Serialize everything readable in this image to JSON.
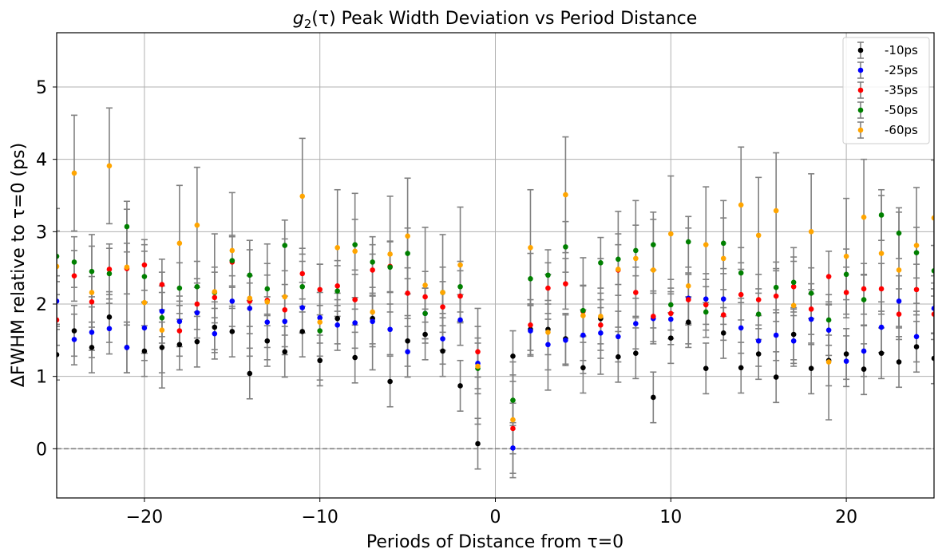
{
  "chart_data": {
    "type": "scatter",
    "title": "g₂(τ) Peak Width Deviation vs Period Distance",
    "title_math": "g",
    "title_sub": "2",
    "title_arg": "(τ)",
    "title_rest": " Peak Width Deviation vs Period Distance",
    "xlabel": "Periods of Distance from τ=0",
    "ylabel": "ΔFWHM relative to τ=0 (ps)",
    "xlim": [
      -25,
      25
    ],
    "ylim": [
      -0.68,
      5.75
    ],
    "xticks": [
      -20,
      -10,
      0,
      10,
      20
    ],
    "xtick_labels": [
      "−20",
      "−10",
      "0",
      "10",
      "20"
    ],
    "yticks": [
      0,
      1,
      2,
      3,
      4,
      5
    ],
    "ytick_labels": [
      "0",
      "1",
      "2",
      "3",
      "4",
      "5"
    ],
    "grid": true,
    "reference_line": {
      "y": 0,
      "style": "dashed",
      "color": "#808080"
    },
    "errorbar_color": "#808080",
    "legend_position": "top-right",
    "series": [
      {
        "name": "-10ps",
        "color": "#000000",
        "x": [
          -25,
          -24,
          -23,
          -22,
          -21,
          -20,
          -19,
          -18,
          -17,
          -16,
          -15,
          -14,
          -13,
          -12,
          -11,
          -10,
          -9,
          -8,
          -7,
          -6,
          -5,
          -4,
          -3,
          -2,
          -1,
          1,
          2,
          3,
          4,
          5,
          6,
          7,
          8,
          9,
          10,
          11,
          12,
          13,
          14,
          15,
          16,
          17,
          18,
          19,
          20,
          21,
          22,
          23,
          24,
          25
        ],
        "y": [
          1.3,
          1.63,
          1.4,
          1.82,
          1.4,
          1.35,
          1.4,
          1.44,
          1.48,
          1.68,
          1.62,
          1.04,
          1.49,
          1.34,
          1.62,
          1.22,
          1.8,
          1.26,
          1.8,
          0.93,
          1.49,
          1.58,
          1.35,
          0.87,
          0.07,
          1.28,
          1.65,
          1.65,
          1.52,
          1.12,
          1.8,
          1.27,
          1.32,
          0.71,
          1.53,
          1.75,
          1.11,
          1.6,
          1.12,
          1.31,
          0.99,
          1.58,
          1.11,
          1.22,
          1.31,
          1.1,
          1.32,
          1.2,
          1.41,
          1.25
        ],
        "err": [
          0.35,
          0.35,
          0.35,
          0.35,
          0.35,
          0.35,
          0.35,
          0.35,
          0.35,
          0.35,
          0.35,
          0.35,
          0.35,
          0.35,
          0.35,
          0.35,
          0.35,
          0.35,
          0.35,
          0.35,
          0.35,
          0.35,
          0.35,
          0.35,
          0.35,
          0.35,
          0.35,
          0.35,
          0.35,
          0.35,
          0.35,
          0.35,
          0.35,
          0.35,
          0.35,
          0.35,
          0.35,
          0.35,
          0.35,
          0.35,
          0.35,
          0.35,
          0.35,
          0.35,
          0.35,
          0.35,
          0.35,
          0.35,
          0.35,
          0.35
        ]
      },
      {
        "name": "-25ps",
        "color": "#0000ff",
        "x": [
          -25,
          -24,
          -23,
          -22,
          -21,
          -20,
          -19,
          -18,
          -17,
          -16,
          -15,
          -14,
          -13,
          -12,
          -11,
          -10,
          -9,
          -8,
          -7,
          -6,
          -5,
          -4,
          -3,
          -2,
          -1,
          1,
          2,
          3,
          4,
          5,
          6,
          7,
          8,
          9,
          10,
          11,
          12,
          13,
          14,
          15,
          16,
          17,
          18,
          19,
          20,
          21,
          22,
          23,
          24,
          25
        ],
        "y": [
          2.04,
          1.51,
          1.61,
          1.66,
          1.4,
          1.67,
          1.9,
          1.76,
          1.88,
          1.59,
          2.04,
          1.94,
          1.75,
          1.76,
          1.95,
          1.81,
          1.71,
          1.74,
          1.76,
          1.65,
          1.34,
          1.87,
          1.52,
          1.78,
          1.18,
          0.01,
          1.63,
          1.44,
          1.5,
          1.57,
          1.6,
          1.55,
          1.73,
          1.8,
          1.79,
          2.08,
          2.07,
          2.07,
          1.67,
          1.49,
          1.57,
          1.49,
          1.79,
          1.64,
          1.21,
          1.35,
          1.68,
          2.04,
          1.55,
          1.94
        ],
        "err": [
          0.35,
          0.35,
          0.35,
          0.35,
          0.35,
          0.35,
          0.35,
          0.35,
          0.35,
          0.35,
          0.35,
          0.35,
          0.35,
          0.35,
          0.35,
          0.35,
          0.35,
          0.35,
          0.35,
          0.35,
          0.35,
          0.35,
          0.35,
          0.35,
          0.35,
          0.35,
          0.35,
          0.35,
          0.35,
          0.35,
          0.35,
          0.35,
          0.35,
          0.35,
          0.35,
          0.35,
          0.35,
          0.35,
          0.35,
          0.35,
          0.35,
          0.35,
          0.35,
          0.35,
          0.35,
          0.35,
          0.35,
          0.35,
          0.35,
          0.35
        ]
      },
      {
        "name": "-35ps",
        "color": "#ff0000",
        "x": [
          -25,
          -24,
          -23,
          -22,
          -21,
          -20,
          -19,
          -18,
          -17,
          -16,
          -15,
          -14,
          -13,
          -12,
          -11,
          -10,
          -9,
          -8,
          -7,
          -6,
          -5,
          -4,
          -3,
          -2,
          -1,
          1,
          2,
          3,
          4,
          5,
          6,
          7,
          8,
          9,
          10,
          11,
          12,
          13,
          14,
          15,
          16,
          17,
          18,
          19,
          20,
          21,
          22,
          23,
          24,
          25
        ],
        "y": [
          1.78,
          2.39,
          2.03,
          2.48,
          2.49,
          2.54,
          2.27,
          1.63,
          2.0,
          2.09,
          2.58,
          2.04,
          2.05,
          1.92,
          2.42,
          2.2,
          2.25,
          2.06,
          2.47,
          2.52,
          2.15,
          2.1,
          1.96,
          2.11,
          1.34,
          0.28,
          1.71,
          2.22,
          2.28,
          1.9,
          1.71,
          2.47,
          2.16,
          1.83,
          1.87,
          2.06,
          1.99,
          1.85,
          2.13,
          2.06,
          2.11,
          2.24,
          1.93,
          2.38,
          2.16,
          2.21,
          2.21,
          1.86,
          2.2,
          1.86
        ],
        "err": [
          0.35,
          0.35,
          0.35,
          0.35,
          0.35,
          0.35,
          0.35,
          0.35,
          0.35,
          0.35,
          0.35,
          0.35,
          0.35,
          0.35,
          0.35,
          0.35,
          0.35,
          0.35,
          0.35,
          0.35,
          0.35,
          0.35,
          0.35,
          0.35,
          0.35,
          0.35,
          0.35,
          0.35,
          0.35,
          0.35,
          0.35,
          0.35,
          0.35,
          0.35,
          0.35,
          0.35,
          0.35,
          0.35,
          0.35,
          0.35,
          0.35,
          0.35,
          0.35,
          0.35,
          0.35,
          0.35,
          0.35,
          0.35,
          0.35,
          0.35
        ]
      },
      {
        "name": "-50ps",
        "color": "#008000",
        "x": [
          -25,
          -24,
          -23,
          -22,
          -21,
          -20,
          -19,
          -18,
          -17,
          -16,
          -15,
          -14,
          -13,
          -12,
          -11,
          -10,
          -9,
          -8,
          -7,
          -6,
          -5,
          -4,
          -3,
          -2,
          -1,
          1,
          2,
          3,
          4,
          5,
          6,
          7,
          8,
          9,
          10,
          11,
          12,
          13,
          14,
          15,
          16,
          17,
          18,
          19,
          20,
          21,
          22,
          23,
          24,
          25
        ],
        "y": [
          2.66,
          2.58,
          2.45,
          2.42,
          3.07,
          2.38,
          1.81,
          2.22,
          2.24,
          2.16,
          2.6,
          2.4,
          2.21,
          2.81,
          2.24,
          1.63,
          2.18,
          2.82,
          2.58,
          2.51,
          2.7,
          1.87,
          2.16,
          2.24,
          1.11,
          0.67,
          2.35,
          2.4,
          2.79,
          1.91,
          2.57,
          2.62,
          2.74,
          2.82,
          1.99,
          2.86,
          1.89,
          2.84,
          2.43,
          1.86,
          2.23,
          2.3,
          2.15,
          1.78,
          2.41,
          2.06,
          3.23,
          2.98,
          2.71,
          2.46
        ],
        "err": [
          0.35,
          0.35,
          0.35,
          0.35,
          0.35,
          0.35,
          0.35,
          0.35,
          0.35,
          0.35,
          0.35,
          0.35,
          0.35,
          0.35,
          0.35,
          0.35,
          0.35,
          0.35,
          0.35,
          0.35,
          0.35,
          0.35,
          0.35,
          0.35,
          0.35,
          0.35,
          0.35,
          0.35,
          0.35,
          0.35,
          0.35,
          0.35,
          0.35,
          0.35,
          0.35,
          0.35,
          0.35,
          0.35,
          0.35,
          0.35,
          0.35,
          0.35,
          0.35,
          0.35,
          0.35,
          0.35,
          0.35,
          0.35,
          0.35,
          0.35
        ]
      },
      {
        "name": "-60ps",
        "color": "#ffa500",
        "x": [
          -25,
          -24,
          -23,
          -22,
          -21,
          -20,
          -19,
          -18,
          -17,
          -16,
          -15,
          -14,
          -13,
          -12,
          -11,
          -10,
          -9,
          -8,
          -7,
          -6,
          -5,
          -4,
          -3,
          -2,
          -1,
          1,
          2,
          3,
          4,
          5,
          6,
          7,
          8,
          9,
          10,
          11,
          12,
          13,
          14,
          15,
          16,
          17,
          18,
          19,
          20,
          21,
          22,
          23,
          24,
          25
        ],
        "y": [
          2.52,
          3.81,
          2.16,
          3.91,
          2.51,
          2.02,
          1.64,
          2.84,
          3.09,
          2.17,
          2.74,
          2.08,
          2.03,
          2.1,
          3.49,
          1.75,
          2.78,
          2.73,
          1.89,
          2.69,
          2.94,
          2.26,
          2.16,
          2.54,
          1.14,
          0.4,
          2.78,
          1.61,
          3.51,
          1.84,
          1.83,
          2.48,
          2.63,
          2.47,
          2.97,
          2.25,
          2.82,
          2.63,
          3.37,
          2.95,
          3.29,
          1.98,
          3.0,
          1.2,
          2.66,
          3.2,
          2.7,
          2.47,
          2.81,
          3.19
        ],
        "err": [
          0.8,
          0.8,
          0.8,
          0.8,
          0.8,
          0.8,
          0.8,
          0.8,
          0.8,
          0.8,
          0.8,
          0.8,
          0.8,
          0.8,
          0.8,
          0.8,
          0.8,
          0.8,
          0.8,
          0.8,
          0.8,
          0.8,
          0.8,
          0.8,
          0.8,
          0.8,
          0.8,
          0.8,
          0.8,
          0.8,
          0.8,
          0.8,
          0.8,
          0.8,
          0.8,
          0.8,
          0.8,
          0.8,
          0.8,
          0.8,
          0.8,
          0.8,
          0.8,
          0.8,
          0.8,
          0.8,
          0.8,
          0.8,
          0.8,
          0.8
        ]
      }
    ]
  }
}
